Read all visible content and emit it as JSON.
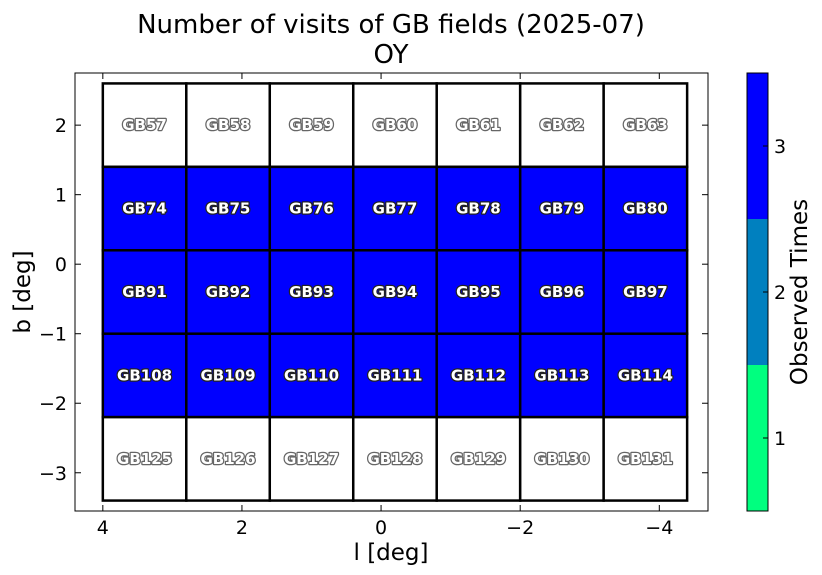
{
  "chart_data": {
    "type": "heatmap",
    "title": "Number of visits of GB fields (2025-07)",
    "subtitle": "OY",
    "xlabel": "l [deg]",
    "ylabel": "b [deg]",
    "colorbar_label": "Observed Times",
    "xlim": [
      4.4,
      -4.7
    ],
    "ylim": [
      -3.55,
      2.75
    ],
    "x_ticks": [
      4,
      2,
      0,
      -2,
      -4
    ],
    "x_tick_labels": [
      "4",
      "2",
      "0",
      "−2",
      "−4"
    ],
    "y_ticks": [
      2,
      1,
      0,
      -1,
      -2,
      -3
    ],
    "y_tick_labels": [
      "2",
      "1",
      "0",
      "−1",
      "−2",
      "−3"
    ],
    "colorbar_ticks": [
      "1",
      "2",
      "3"
    ],
    "colorbar_colors": [
      "#00ff7f",
      "#0080bf",
      "#0000ff"
    ],
    "colorbar_range": [
      0.5,
      3.5
    ],
    "grid": false,
    "field_l_edges": [
      4.0,
      2.8,
      1.6,
      0.4,
      -0.8,
      -2.0,
      -3.2,
      -4.4
    ],
    "field_b_edges": [
      2.6,
      1.4,
      0.2,
      -1.0,
      -2.2,
      -3.4
    ],
    "fields": [
      {
        "name": "GB57",
        "visits": 0
      },
      {
        "name": "GB58",
        "visits": 0
      },
      {
        "name": "GB59",
        "visits": 0
      },
      {
        "name": "GB60",
        "visits": 0
      },
      {
        "name": "GB61",
        "visits": 0
      },
      {
        "name": "GB62",
        "visits": 0
      },
      {
        "name": "GB63",
        "visits": 0
      },
      {
        "name": "GB74",
        "visits": 3
      },
      {
        "name": "GB75",
        "visits": 3
      },
      {
        "name": "GB76",
        "visits": 3
      },
      {
        "name": "GB77",
        "visits": 3
      },
      {
        "name": "GB78",
        "visits": 3
      },
      {
        "name": "GB79",
        "visits": 3
      },
      {
        "name": "GB80",
        "visits": 3
      },
      {
        "name": "GB91",
        "visits": 3
      },
      {
        "name": "GB92",
        "visits": 3
      },
      {
        "name": "GB93",
        "visits": 3
      },
      {
        "name": "GB94",
        "visits": 3
      },
      {
        "name": "GB95",
        "visits": 3
      },
      {
        "name": "GB96",
        "visits": 3
      },
      {
        "name": "GB97",
        "visits": 3
      },
      {
        "name": "GB108",
        "visits": 3
      },
      {
        "name": "GB109",
        "visits": 3
      },
      {
        "name": "GB110",
        "visits": 3
      },
      {
        "name": "GB111",
        "visits": 3
      },
      {
        "name": "GB112",
        "visits": 3
      },
      {
        "name": "GB113",
        "visits": 3
      },
      {
        "name": "GB114",
        "visits": 3
      },
      {
        "name": "GB125",
        "visits": 0
      },
      {
        "name": "GB126",
        "visits": 0
      },
      {
        "name": "GB127",
        "visits": 0
      },
      {
        "name": "GB128",
        "visits": 0
      },
      {
        "name": "GB129",
        "visits": 0
      },
      {
        "name": "GB130",
        "visits": 0
      },
      {
        "name": "GB131",
        "visits": 0
      }
    ]
  }
}
